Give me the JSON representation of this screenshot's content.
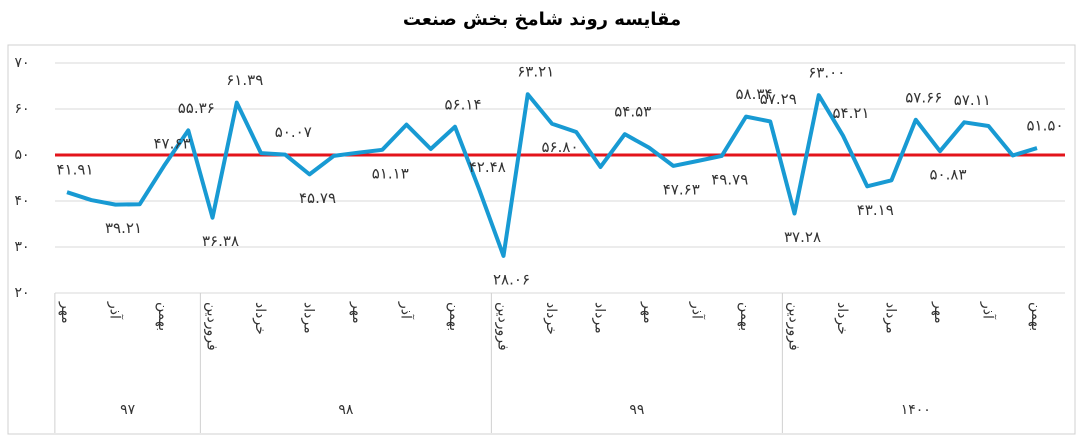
{
  "chart_data": {
    "type": "line",
    "title": "مقایسه روند شامخ بخش صنعت",
    "categories": [
      "مهر",
      null,
      "آذر",
      null,
      "بهمن",
      null,
      "فروردین",
      null,
      "خرداد",
      null,
      "مرداد",
      null,
      "مهر",
      null,
      "آذر",
      null,
      "بهمن",
      null,
      "فروردین",
      null,
      "خرداد",
      null,
      "مرداد",
      null,
      "مهر",
      null,
      "آذر",
      null,
      "بهمن",
      null,
      "فروردین",
      null,
      "خرداد",
      null,
      "مرداد",
      null,
      "مهر",
      null,
      "آذر",
      null,
      "بهمن"
    ],
    "groups": [
      {
        "label": "۹۷",
        "span": 6
      },
      {
        "label": "۹۸",
        "span": 12
      },
      {
        "label": "۹۹",
        "span": 12
      },
      {
        "label": "۱۴۰۰",
        "span": 11
      }
    ],
    "series": [
      {
        "color": "#189ad3",
        "values": [
          41.91,
          40.2,
          39.21,
          39.3,
          47.63,
          55.36,
          36.38,
          61.39,
          50.4,
          50.07,
          45.79,
          49.8,
          50.5,
          51.13,
          56.6,
          51.3,
          56.14,
          42.48,
          28.06,
          63.21,
          56.8,
          55.0,
          47.4,
          54.53,
          51.6,
          47.63,
          48.7,
          49.79,
          58.34,
          57.29,
          37.28,
          63.0,
          54.21,
          43.19,
          44.5,
          57.66,
          50.83,
          57.11,
          56.3,
          49.9,
          51.5
        ],
        "value_labels": [
          "۴۱.۹۱",
          null,
          "۳۹.۲۱",
          null,
          "۴۷.۶۳",
          "۵۵.۳۶",
          "۳۶.۳۸",
          "۶۱.۳۹",
          null,
          "۵۰.۰۷",
          "۴۵.۷۹",
          null,
          null,
          "۵۱.۱۳",
          null,
          null,
          "۵۶.۱۴",
          "۴۲.۴۸",
          "۲۸.۰۶",
          "۶۳.۲۱",
          "۵۶.۸۰",
          null,
          null,
          "۵۴.۵۳",
          null,
          "۴۷.۶۳",
          null,
          "۴۹.۷۹",
          "۵۸.۳۴",
          "۵۷.۲۹",
          "۳۷.۲۸",
          "۶۳.۰۰",
          "۵۴.۲۱",
          "۴۳.۱۹",
          null,
          "۵۷.۶۶",
          "۵۰.۸۳",
          "۵۷.۱۱",
          null,
          null,
          "۵۱.۵۰"
        ]
      }
    ],
    "reference_line": {
      "value": 50,
      "color": "#e3141b"
    },
    "ylim": [
      20,
      70
    ],
    "yticks": [
      {
        "value": 20,
        "label": "۲۰"
      },
      {
        "value": 30,
        "label": "۳۰"
      },
      {
        "value": 40,
        "label": "۴۰"
      },
      {
        "value": 50,
        "label": "۵۰"
      },
      {
        "value": 60,
        "label": "۶۰"
      },
      {
        "value": 70,
        "label": "۷۰"
      }
    ],
    "grid": true
  }
}
